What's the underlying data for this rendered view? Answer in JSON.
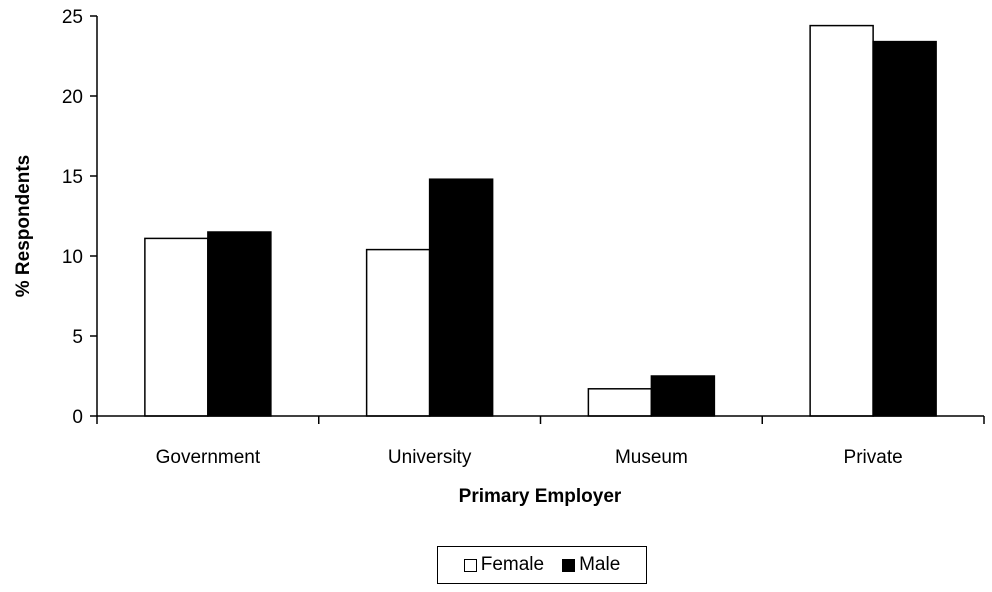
{
  "chart_data": {
    "type": "bar",
    "categories": [
      "Government",
      "University",
      "Museum",
      "Private"
    ],
    "series": [
      {
        "name": "Female",
        "values": [
          11.1,
          10.4,
          1.7,
          24.4
        ],
        "color": "#ffffff"
      },
      {
        "name": "Male",
        "values": [
          11.5,
          14.8,
          2.5,
          23.4
        ],
        "color": "#000000"
      }
    ],
    "xlabel": "Primary Employer",
    "ylabel": "% Respondents",
    "ylim": [
      0,
      25
    ],
    "yticks": [
      "0",
      "5",
      "10",
      "15",
      "20",
      "25"
    ],
    "grid": false,
    "legend_position": "bottom-center"
  }
}
